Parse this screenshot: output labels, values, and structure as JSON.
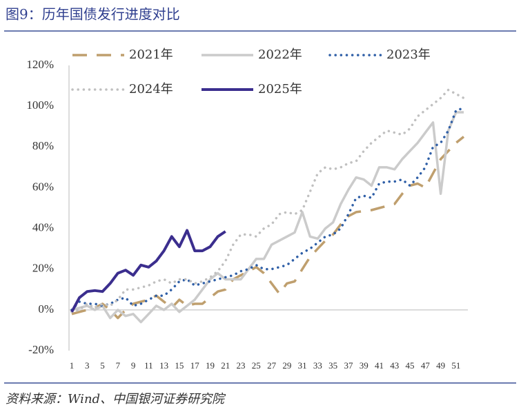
{
  "chart_data": {
    "type": "line",
    "title": "图9：历年国债发行进度对比",
    "source": "资料来源：Wind、中国银河证券研究院",
    "x": [
      1,
      2,
      3,
      4,
      5,
      6,
      7,
      8,
      9,
      10,
      11,
      12,
      13,
      14,
      15,
      16,
      17,
      18,
      19,
      20,
      21,
      22,
      23,
      24,
      25,
      26,
      27,
      28,
      29,
      30,
      31,
      32,
      33,
      34,
      35,
      36,
      37,
      38,
      39,
      40,
      41,
      42,
      43,
      44,
      45,
      46,
      47,
      48,
      49,
      50,
      51,
      52
    ],
    "xlim": [
      1,
      52
    ],
    "xticks": [
      1,
      3,
      5,
      7,
      9,
      11,
      13,
      15,
      17,
      19,
      21,
      23,
      25,
      27,
      29,
      31,
      33,
      35,
      37,
      39,
      41,
      43,
      45,
      47,
      49,
      51
    ],
    "ylim": [
      -20,
      120
    ],
    "yticks": [
      {
        "value": -20,
        "label": "-20%"
      },
      {
        "value": 0,
        "label": "0%"
      },
      {
        "value": 20,
        "label": "20%"
      },
      {
        "value": 40,
        "label": "40%"
      },
      {
        "value": 60,
        "label": "60%"
      },
      {
        "value": 80,
        "label": "80%"
      },
      {
        "value": 100,
        "label": "100%"
      },
      {
        "value": 120,
        "label": "120%"
      }
    ],
    "grid": false,
    "series": [
      {
        "name": "2021年",
        "color": "#bf9f6e",
        "dash": "dashed",
        "width": 3.5,
        "values": [
          -2,
          -1,
          0,
          1,
          3,
          0,
          -4,
          0,
          3,
          4,
          5,
          7,
          4,
          1,
          5,
          2,
          3,
          3,
          6,
          9,
          10,
          15,
          17,
          19,
          21,
          18,
          13,
          8,
          13,
          14,
          20,
          26,
          30,
          34,
          37,
          42,
          46,
          48,
          48.5,
          49,
          50,
          51,
          52,
          57,
          61,
          62,
          60,
          67,
          74,
          78,
          82,
          85
        ]
      },
      {
        "name": "2022年",
        "color": "#cbcbcb",
        "dash": "solid",
        "width": 3.5,
        "values": [
          0,
          1,
          2,
          0,
          2,
          -4,
          0,
          -3,
          -2,
          -6,
          -2,
          2,
          0,
          3,
          -1,
          2,
          5,
          10,
          15,
          18,
          15,
          15,
          15,
          20,
          25,
          25,
          32,
          34,
          36,
          38,
          48,
          36,
          35,
          40,
          43,
          52,
          59,
          65,
          64,
          61,
          70,
          70,
          69,
          74,
          78,
          82,
          87,
          92,
          57,
          88,
          97,
          97
        ]
      },
      {
        "name": "2023年",
        "color": "#2f5fa7",
        "dash": "dotted",
        "width": 3.5,
        "values": [
          0,
          4,
          3,
          3,
          2,
          3,
          5,
          6,
          2,
          3,
          5,
          7,
          7,
          10,
          14,
          15,
          12,
          13,
          14,
          15,
          16,
          17,
          19,
          20,
          22,
          20,
          20,
          21,
          22,
          25,
          28,
          30,
          33,
          36,
          37,
          40,
          47,
          55,
          56,
          55,
          62,
          63,
          63,
          64,
          61,
          65,
          70,
          80,
          82,
          88,
          98,
          99
        ]
      },
      {
        "name": "2024年",
        "color": "#c0c0c0",
        "dash": "dotted",
        "width": 3.5,
        "values": [
          -1,
          0,
          3,
          1,
          3,
          2,
          5,
          10,
          10,
          11,
          12,
          14,
          15,
          13,
          15,
          15,
          13,
          14,
          16,
          19,
          24,
          32,
          37,
          37,
          36,
          40,
          42,
          47,
          48,
          47,
          49,
          58,
          67,
          70,
          69,
          70,
          72,
          73,
          78,
          82,
          85,
          88,
          87,
          86,
          89,
          95,
          98,
          101,
          104,
          108,
          106,
          104
        ]
      },
      {
        "name": "2025年",
        "color": "#3b2e8e",
        "dash": "solid",
        "width": 4,
        "values": [
          -1,
          6,
          9,
          9.5,
          9,
          13,
          18,
          19.5,
          17,
          22,
          21,
          24,
          29,
          36,
          31,
          39,
          29,
          29,
          31,
          36,
          38.5,
          null,
          null,
          null,
          null,
          null,
          null,
          null,
          null,
          null,
          null,
          null,
          null,
          null,
          null,
          null,
          null,
          null,
          null,
          null,
          null,
          null,
          null,
          null,
          null,
          null,
          null,
          null,
          null,
          null,
          null,
          null
        ]
      }
    ]
  }
}
